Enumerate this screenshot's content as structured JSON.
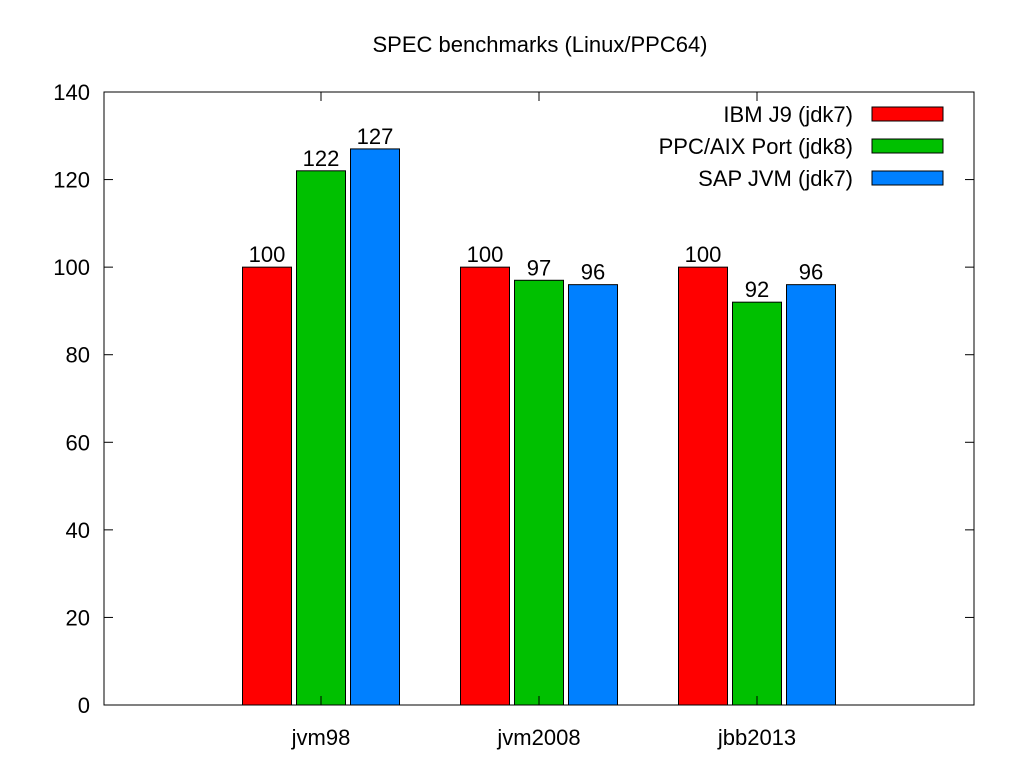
{
  "chart_data": {
    "type": "bar",
    "title": "SPEC benchmarks (Linux/PPC64)",
    "xlabel": "",
    "ylabel": "",
    "ylim": [
      0,
      140
    ],
    "yticks": [
      0,
      20,
      40,
      60,
      80,
      100,
      120,
      140
    ],
    "categories": [
      "jvm98",
      "jvm2008",
      "jbb2013"
    ],
    "series": [
      {
        "name": "IBM J9 (jdk7)",
        "color": "#ff0000",
        "values": [
          100,
          100,
          100
        ]
      },
      {
        "name": "PPC/AIX Port (jdk8)",
        "color": "#00c000",
        "values": [
          122,
          97,
          92
        ]
      },
      {
        "name": "SAP JVM (jdk7)",
        "color": "#0080ff",
        "values": [
          127,
          96,
          96
        ]
      }
    ],
    "legend": "top-right",
    "grid": false
  }
}
